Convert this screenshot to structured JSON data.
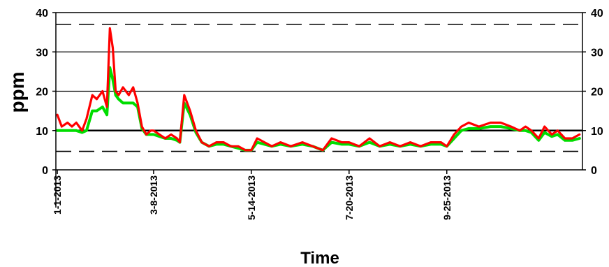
{
  "chart_data": {
    "type": "line",
    "title": "",
    "xlabel": "Time",
    "ylabel": "ppm",
    "ylim": [
      0,
      40
    ],
    "yticks": [
      0,
      10,
      20,
      30,
      40
    ],
    "yticks_right": [
      0,
      10,
      20,
      30,
      40
    ],
    "x_tick_labels": [
      "1-1-2013",
      "3-8-2013",
      "5-14-2013",
      "7-20-2013",
      "9-25-2013"
    ],
    "grid": "horizontal",
    "legend": "none",
    "reference_lines": [
      {
        "y": 37,
        "style": "dashed"
      },
      {
        "y": 10,
        "style": "solid-thick"
      },
      {
        "y": 4.7,
        "style": "dashed"
      }
    ],
    "colors": {
      "series_upper": "#ff0000",
      "series_lower": "#00dd00",
      "axis": "#000000"
    },
    "series": [
      {
        "color": "#ff0000",
        "x": [
          "2013-01-01",
          "2013-01-04",
          "2013-01-08",
          "2013-01-11",
          "2013-01-14",
          "2013-01-18",
          "2013-01-21",
          "2013-01-25",
          "2013-01-28",
          "2013-02-01",
          "2013-02-04",
          "2013-02-06",
          "2013-02-08",
          "2013-02-10",
          "2013-02-12",
          "2013-02-15",
          "2013-02-19",
          "2013-02-22",
          "2013-02-25",
          "2013-02-28",
          "2013-03-03",
          "2013-03-06",
          "2013-03-08",
          "2013-03-12",
          "2013-03-16",
          "2013-03-20",
          "2013-03-24",
          "2013-03-26",
          "2013-03-29",
          "2013-04-02",
          "2013-04-06",
          "2013-04-10",
          "2013-04-15",
          "2013-04-20",
          "2013-04-25",
          "2013-04-30",
          "2013-05-05",
          "2013-05-10",
          "2013-05-14",
          "2013-05-18",
          "2013-05-23",
          "2013-05-28",
          "2013-06-03",
          "2013-06-10",
          "2013-06-18",
          "2013-06-25",
          "2013-07-02",
          "2013-07-08",
          "2013-07-15",
          "2013-07-20",
          "2013-07-27",
          "2013-08-03",
          "2013-08-10",
          "2013-08-17",
          "2013-08-24",
          "2013-08-31",
          "2013-09-07",
          "2013-09-14",
          "2013-09-21",
          "2013-09-25",
          "2013-09-30",
          "2013-10-05",
          "2013-10-10",
          "2013-10-17",
          "2013-10-25",
          "2013-11-01",
          "2013-11-08",
          "2013-11-14",
          "2013-11-18",
          "2013-11-22",
          "2013-11-27",
          "2013-12-01",
          "2013-12-06",
          "2013-12-10",
          "2013-12-15",
          "2013-12-20",
          "2013-12-25"
        ],
        "values": [
          14,
          11,
          12,
          11,
          12,
          10,
          13,
          19,
          18,
          20,
          16,
          36,
          31,
          20,
          19,
          21,
          19,
          21,
          17,
          11,
          9,
          10,
          10,
          9,
          8,
          9,
          8,
          7,
          19,
          15,
          10,
          7,
          6,
          7,
          7,
          6,
          6,
          5,
          5,
          8,
          7,
          6,
          7,
          6,
          7,
          6,
          5,
          8,
          7,
          7,
          6,
          8,
          6,
          7,
          6,
          7,
          6,
          7,
          7,
          6,
          9,
          11,
          12,
          11,
          12,
          12,
          11,
          10,
          11,
          10,
          8,
          11,
          9,
          10,
          8,
          8,
          9
        ]
      },
      {
        "color": "#00dd00",
        "x": [
          "2013-01-01",
          "2013-01-04",
          "2013-01-08",
          "2013-01-11",
          "2013-01-14",
          "2013-01-18",
          "2013-01-21",
          "2013-01-25",
          "2013-01-28",
          "2013-02-01",
          "2013-02-04",
          "2013-02-06",
          "2013-02-08",
          "2013-02-10",
          "2013-02-12",
          "2013-02-15",
          "2013-02-19",
          "2013-02-22",
          "2013-02-25",
          "2013-02-28",
          "2013-03-03",
          "2013-03-06",
          "2013-03-08",
          "2013-03-12",
          "2013-03-16",
          "2013-03-20",
          "2013-03-24",
          "2013-03-26",
          "2013-03-29",
          "2013-04-02",
          "2013-04-06",
          "2013-04-10",
          "2013-04-15",
          "2013-04-20",
          "2013-04-25",
          "2013-04-30",
          "2013-05-05",
          "2013-05-10",
          "2013-05-14",
          "2013-05-18",
          "2013-05-23",
          "2013-05-28",
          "2013-06-03",
          "2013-06-10",
          "2013-06-18",
          "2013-06-25",
          "2013-07-02",
          "2013-07-08",
          "2013-07-15",
          "2013-07-20",
          "2013-07-27",
          "2013-08-03",
          "2013-08-10",
          "2013-08-17",
          "2013-08-24",
          "2013-08-31",
          "2013-09-07",
          "2013-09-14",
          "2013-09-21",
          "2013-09-25",
          "2013-09-30",
          "2013-10-05",
          "2013-10-10",
          "2013-10-17",
          "2013-10-25",
          "2013-11-01",
          "2013-11-08",
          "2013-11-14",
          "2013-11-18",
          "2013-11-22",
          "2013-11-27",
          "2013-12-01",
          "2013-12-06",
          "2013-12-10",
          "2013-12-15",
          "2013-12-20",
          "2013-12-25"
        ],
        "values": [
          10,
          10,
          10,
          10,
          10,
          9.5,
          10,
          15,
          15,
          16,
          14,
          26,
          23,
          19,
          18,
          17,
          17,
          17,
          16,
          10.5,
          9,
          9,
          9,
          8.5,
          8,
          8,
          7.5,
          7,
          17,
          14,
          9.5,
          7,
          6,
          6.5,
          6.5,
          6,
          5.5,
          5,
          5,
          7,
          6.5,
          6,
          6.5,
          6,
          6.5,
          6,
          5,
          7,
          6.5,
          6.5,
          6,
          7,
          6,
          6.5,
          6,
          6.5,
          6,
          6.5,
          6.5,
          6,
          8,
          10,
          10.5,
          10.5,
          11,
          11,
          10.5,
          10,
          10,
          9.5,
          7.5,
          9.5,
          8.5,
          9,
          7.5,
          7.5,
          8
        ]
      }
    ]
  }
}
